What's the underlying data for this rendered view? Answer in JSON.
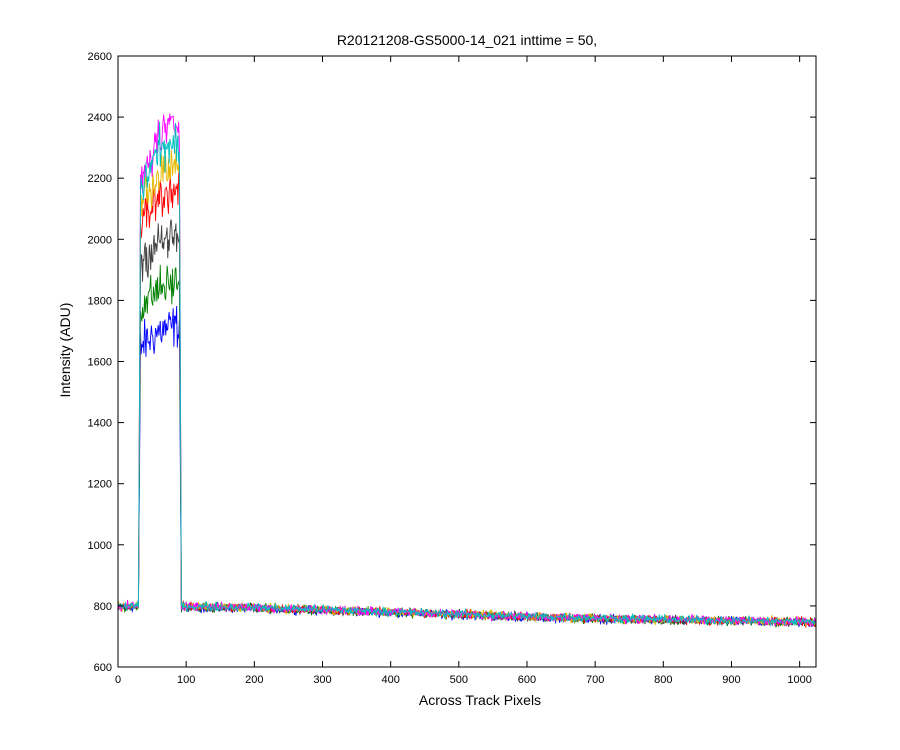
{
  "chart_data": {
    "type": "line",
    "title": "R20121208-GS5000-14_021 inttime = 50,",
    "xlabel": "Across Track Pixels",
    "ylabel": "Intensity (ADU)",
    "xlim": [
      0,
      1024
    ],
    "ylim": [
      600,
      2600
    ],
    "xticks": [
      "0",
      "100",
      "200",
      "300",
      "400",
      "500",
      "600",
      "700",
      "800",
      "900",
      "1000"
    ],
    "yticks": [
      "600",
      "800",
      "1000",
      "1200",
      "1400",
      "1600",
      "1800",
      "2000",
      "2200",
      "2400",
      "2600"
    ],
    "grid": false,
    "legend": "none",
    "colors": [
      "#0000ff",
      "#008000",
      "#404040",
      "#ff0000",
      "#e6b800",
      "#ff00ff",
      "#00bfbf"
    ],
    "series": [
      {
        "x": [
          0,
          30,
          33,
          60,
          90,
          93,
          200,
          400,
          600,
          800,
          1024
        ],
        "values": [
          790,
          798,
          1650,
          1700,
          1720,
          795,
          792,
          778,
          762,
          752,
          745
        ]
      },
      {
        "x": [
          0,
          30,
          33,
          60,
          90,
          93,
          200,
          400,
          600,
          800,
          1024
        ],
        "values": [
          792,
          798,
          1780,
          1840,
          1860,
          796,
          793,
          779,
          763,
          753,
          746
        ]
      },
      {
        "x": [
          0,
          30,
          33,
          60,
          90,
          93,
          200,
          400,
          600,
          800,
          1024
        ],
        "values": [
          794,
          799,
          1930,
          1990,
          2010,
          797,
          793,
          780,
          764,
          754,
          747
        ]
      },
      {
        "x": [
          0,
          30,
          33,
          60,
          90,
          93,
          200,
          400,
          600,
          800,
          1024
        ],
        "values": [
          795,
          800,
          2050,
          2140,
          2170,
          798,
          794,
          780,
          765,
          755,
          747
        ]
      },
      {
        "x": [
          0,
          30,
          33,
          60,
          90,
          93,
          200,
          400,
          600,
          800,
          1024
        ],
        "values": [
          796,
          801,
          2120,
          2210,
          2240,
          799,
          795,
          781,
          765,
          755,
          748
        ]
      },
      {
        "x": [
          0,
          30,
          33,
          60,
          90,
          93,
          200,
          400,
          600,
          800,
          1024
        ],
        "values": [
          797,
          802,
          2180,
          2340,
          2380,
          800,
          795,
          781,
          766,
          756,
          748
        ]
      },
      {
        "x": [
          0,
          30,
          33,
          60,
          90,
          93,
          200,
          400,
          600,
          800,
          1024
        ],
        "values": [
          796,
          801,
          2160,
          2300,
          2300,
          799,
          795,
          781,
          766,
          756,
          748
        ]
      }
    ]
  }
}
